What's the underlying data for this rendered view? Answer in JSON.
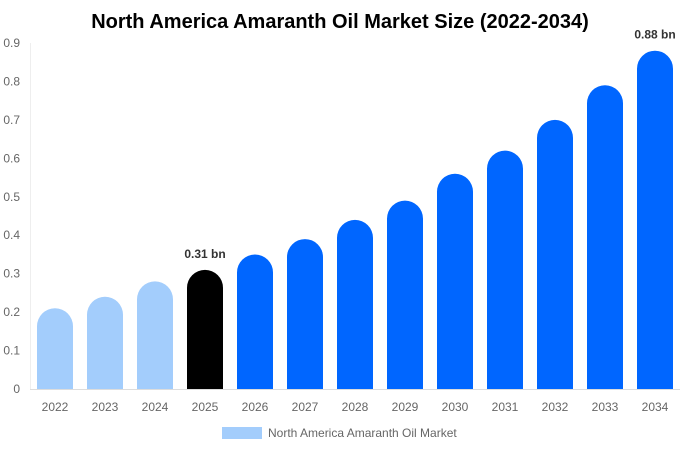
{
  "chart_data": {
    "type": "bar",
    "title": "North America Amaranth Oil Market Size (2022-2034)",
    "xlabel": "",
    "ylabel": "",
    "ylim": [
      0,
      0.9
    ],
    "yticks": [
      "0",
      "0.1",
      "0.2",
      "0.3",
      "0.4",
      "0.5",
      "0.6",
      "0.7",
      "0.8",
      "0.9"
    ],
    "grid": false,
    "legend_position": "bottom",
    "categories": [
      "2022",
      "2023",
      "2024",
      "2025",
      "2026",
      "2027",
      "2028",
      "2029",
      "2030",
      "2031",
      "2032",
      "2033",
      "2034"
    ],
    "series": [
      {
        "name": "North America Amaranth Oil Market",
        "values": [
          0.21,
          0.24,
          0.28,
          0.31,
          0.35,
          0.39,
          0.44,
          0.49,
          0.56,
          0.62,
          0.7,
          0.79,
          0.88
        ]
      }
    ],
    "bar_colors": [
      "#a3cdfc",
      "#a3cdfc",
      "#a3cdfc",
      "#000000",
      "#0066ff",
      "#0066ff",
      "#0066ff",
      "#0066ff",
      "#0066ff",
      "#0066ff",
      "#0066ff",
      "#0066ff",
      "#0066ff"
    ],
    "legend_color": "#a3cdfc",
    "data_labels": [
      {
        "category": "2025",
        "text": "0.31 bn"
      },
      {
        "category": "2034",
        "text": "0.88 bn"
      }
    ]
  }
}
